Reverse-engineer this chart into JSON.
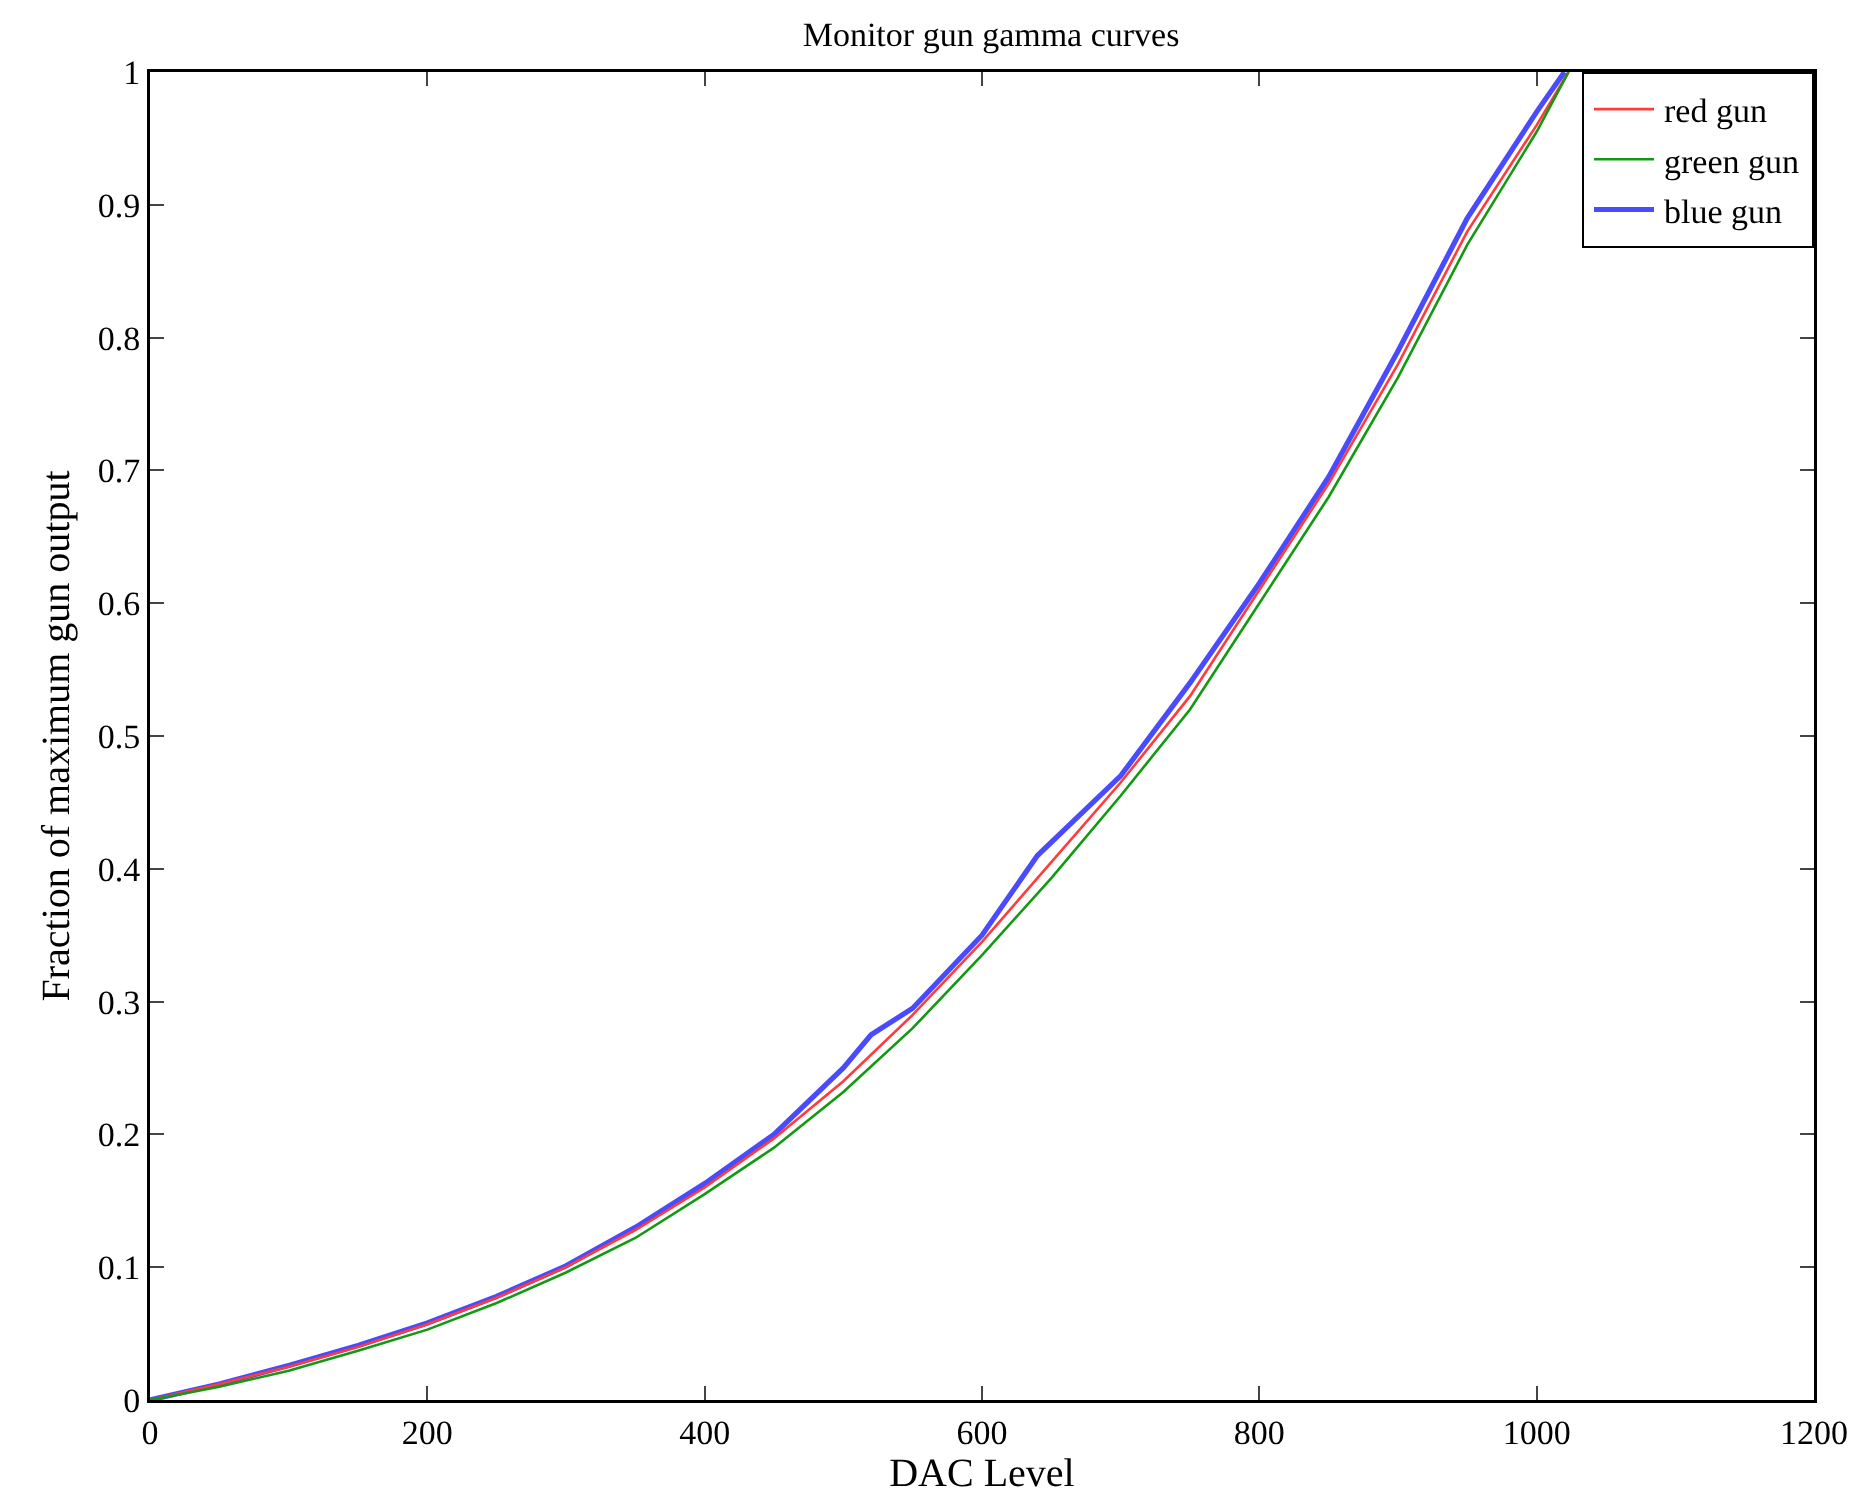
{
  "chart_data": {
    "type": "line",
    "title": "Monitor gun gamma curves",
    "xlabel": "DAC Level",
    "ylabel": "Fraction of maximum gun output",
    "x": [
      0,
      50,
      100,
      150,
      200,
      250,
      300,
      350,
      400,
      450,
      500,
      550,
      600,
      650,
      700,
      750,
      800,
      850,
      900,
      950,
      1000,
      1023
    ],
    "series": [
      {
        "name": "red gun",
        "color": "#ff3b3b",
        "values": [
          0,
          0.012,
          0.025,
          0.04,
          0.057,
          0.077,
          0.1,
          0.128,
          0.16,
          0.197,
          0.24,
          0.29,
          0.345,
          0.405,
          0.465,
          0.53,
          0.61,
          0.69,
          0.78,
          0.88,
          0.96,
          1.0
        ]
      },
      {
        "name": "green gun",
        "color": "#119911",
        "values": [
          0,
          0.01,
          0.022,
          0.037,
          0.053,
          0.073,
          0.096,
          0.122,
          0.155,
          0.19,
          0.232,
          0.28,
          0.335,
          0.393,
          0.455,
          0.52,
          0.6,
          0.68,
          0.77,
          0.87,
          0.955,
          1.0
        ]
      },
      {
        "name": "blue gun",
        "color": "#4a4aff",
        "x": [
          0,
          50,
          100,
          150,
          200,
          250,
          300,
          350,
          400,
          450,
          500,
          520,
          550,
          600,
          640,
          700,
          750,
          800,
          850,
          900,
          950,
          1000,
          1020
        ],
        "values": [
          0,
          0.012,
          0.026,
          0.041,
          0.058,
          0.078,
          0.101,
          0.13,
          0.163,
          0.2,
          0.25,
          0.275,
          0.295,
          0.35,
          0.41,
          0.47,
          0.54,
          0.615,
          0.695,
          0.79,
          0.89,
          0.97,
          1.0
        ]
      }
    ],
    "xlim": [
      0,
      1200
    ],
    "xticks": [
      0,
      200,
      400,
      600,
      800,
      1000,
      1200
    ],
    "ylim": [
      0,
      1
    ],
    "yticks": [
      0,
      0.1,
      0.2,
      0.3,
      0.4,
      0.5,
      0.6,
      0.7,
      0.8,
      0.9,
      1
    ],
    "grid": false,
    "legend": "top right",
    "marker": "none",
    "line_style": "solid"
  }
}
